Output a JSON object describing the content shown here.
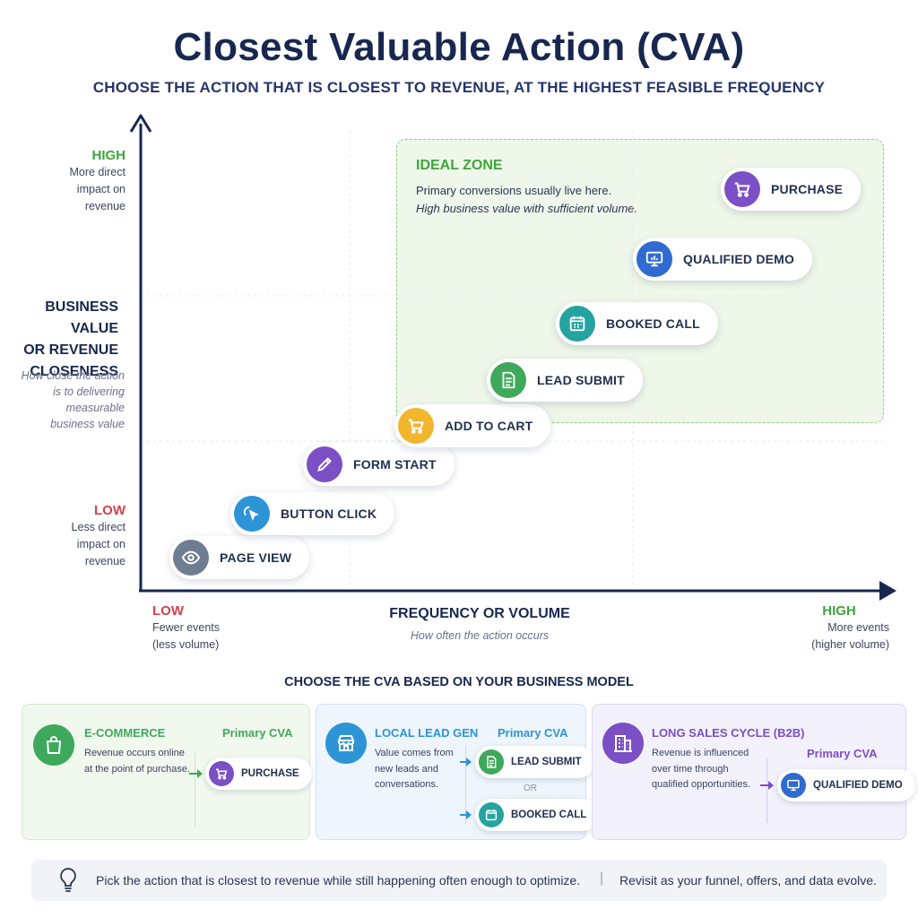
{
  "header": {
    "title": "Closest Valuable Action (CVA)",
    "subtitle": "CHOOSE THE ACTION THAT IS CLOSEST TO REVENUE, AT THE HIGHEST FEASIBLE FREQUENCY"
  },
  "chart": {
    "y_axis": {
      "high_label": "HIGH",
      "high_desc": [
        "More direct",
        "impact on",
        "revenue"
      ],
      "title": [
        "BUSINESS VALUE",
        "OR REVENUE",
        "CLOSENESS"
      ],
      "desc": [
        "How close the action",
        "is to delivering",
        "measurable",
        "business value"
      ],
      "low_label": "LOW",
      "low_desc": [
        "Less direct",
        "impact on",
        "revenue"
      ]
    },
    "x_axis": {
      "low_label": "LOW",
      "low_desc": [
        "Fewer events",
        "(less volume)"
      ],
      "title": "FREQUENCY OR VOLUME",
      "desc": "How often the action occurs",
      "high_label": "HIGH",
      "high_desc": [
        "More events",
        "(higher volume)"
      ]
    },
    "ideal_zone": {
      "title": "IDEAL ZONE",
      "line1": "Primary conversions usually live here.",
      "line2": "High business value with sufficient volume."
    },
    "actions": [
      {
        "label": "PAGE VIEW",
        "icon": "eye-icon",
        "color": "#6f7d92"
      },
      {
        "label": "BUTTON CLICK",
        "icon": "pointer-click-icon",
        "color": "#2d94d6"
      },
      {
        "label": "FORM START",
        "icon": "pencil-icon",
        "color": "#7b4fc5"
      },
      {
        "label": "ADD TO CART",
        "icon": "cart-icon",
        "color": "#f2b52e"
      },
      {
        "label": "LEAD SUBMIT",
        "icon": "document-icon",
        "color": "#3ea95a"
      },
      {
        "label": "BOOKED CALL",
        "icon": "calendar-icon",
        "color": "#25a3a0"
      },
      {
        "label": "QUALIFIED DEMO",
        "icon": "presentation-icon",
        "color": "#2f6bd0"
      },
      {
        "label": "PURCHASE",
        "icon": "cart-icon",
        "color": "#7b4fc5"
      }
    ]
  },
  "models": {
    "heading": "CHOOSE THE CVA BASED ON YOUR BUSINESS MODEL",
    "cards": [
      {
        "title": "E-COMMERCE",
        "desc": [
          "Revenue occurs online",
          "at the point of purchase."
        ],
        "primary_label": "Primary CVA",
        "actions": [
          "PURCHASE"
        ],
        "icon": "shopping-bag-icon",
        "color": "#3ea95a"
      },
      {
        "title": "LOCAL LEAD GEN",
        "desc": [
          "Value comes from",
          "new leads and",
          "conversations."
        ],
        "primary_label": "Primary CVA",
        "actions": [
          "LEAD SUBMIT",
          "BOOKED CALL"
        ],
        "or_text": "OR",
        "icon": "storefront-icon",
        "color": "#2d94d6"
      },
      {
        "title": "LONG SALES CYCLE (B2B)",
        "desc": [
          "Revenue is influenced",
          "over time through",
          "qualified opportunities."
        ],
        "primary_label": "Primary CVA",
        "actions": [
          "QUALIFIED DEMO"
        ],
        "icon": "building-icon",
        "color": "#7b4fc5"
      }
    ]
  },
  "tip": {
    "icon": "lightbulb-icon",
    "text1": "Pick the action that is closest to revenue while still happening often enough to optimize.",
    "separator": "|",
    "text2": "Revisit as your funnel, offers, and data evolve."
  }
}
